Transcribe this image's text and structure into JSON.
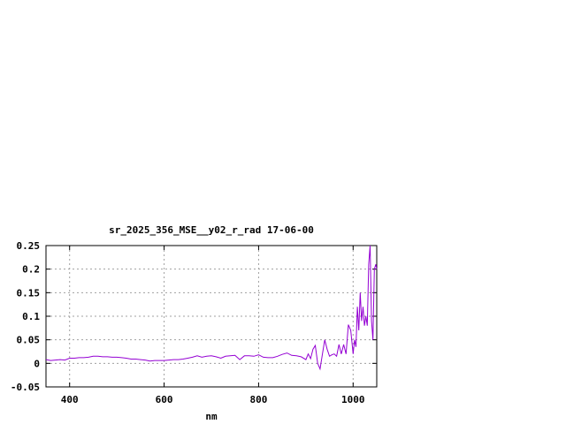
{
  "chart_data": {
    "type": "line",
    "title": "sr_2025_356_MSE__y02_r_rad 17-06-00",
    "xlabel": "nm",
    "ylabel": "",
    "xlim": [
      350,
      1050
    ],
    "ylim": [
      -0.05,
      0.25
    ],
    "xticks": [
      400,
      600,
      800,
      1000
    ],
    "yticks": [
      -0.05,
      0,
      0.05,
      0.1,
      0.15,
      0.2,
      0.25
    ],
    "ytick_labels": [
      "-0.05",
      "0",
      "0.05",
      "0.1",
      "0.15",
      "0.2",
      "0.25"
    ],
    "grid": true,
    "series_color": "#9400d3",
    "series": [
      {
        "x": [
          350,
          360,
          370,
          380,
          390,
          400,
          410,
          420,
          430,
          440,
          450,
          460,
          470,
          480,
          490,
          500,
          510,
          520,
          530,
          540,
          550,
          560,
          570,
          580,
          590,
          600,
          610,
          620,
          630,
          640,
          650,
          660,
          670,
          680,
          690,
          700,
          710,
          720,
          730,
          740,
          750,
          760,
          770,
          780,
          790,
          800,
          810,
          820,
          830,
          840,
          850,
          860,
          870,
          880,
          890,
          900,
          905,
          910,
          915,
          920,
          925,
          930,
          935,
          940,
          945,
          950,
          955,
          960,
          965,
          970,
          975,
          980,
          985,
          990,
          995,
          1000,
          1003,
          1006,
          1009,
          1012,
          1015,
          1018,
          1021,
          1024,
          1027,
          1030,
          1033,
          1036,
          1039,
          1042,
          1045,
          1048,
          1050
        ],
        "y": [
          0.008,
          0.006,
          0.007,
          0.008,
          0.007,
          0.011,
          0.011,
          0.012,
          0.012,
          0.013,
          0.015,
          0.015,
          0.014,
          0.014,
          0.013,
          0.013,
          0.012,
          0.011,
          0.009,
          0.009,
          0.008,
          0.007,
          0.005,
          0.006,
          0.006,
          0.006,
          0.007,
          0.008,
          0.008,
          0.009,
          0.011,
          0.013,
          0.016,
          0.013,
          0.015,
          0.016,
          0.014,
          0.011,
          0.015,
          0.016,
          0.017,
          0.008,
          0.016,
          0.016,
          0.015,
          0.018,
          0.013,
          0.012,
          0.012,
          0.015,
          0.019,
          0.022,
          0.017,
          0.016,
          0.014,
          0.008,
          0.02,
          0.01,
          0.03,
          0.038,
          0.0,
          -0.012,
          0.02,
          0.05,
          0.03,
          0.015,
          0.018,
          0.02,
          0.015,
          0.04,
          0.02,
          0.04,
          0.02,
          0.082,
          0.07,
          0.02,
          0.05,
          0.035,
          0.12,
          0.07,
          0.15,
          0.09,
          0.12,
          0.08,
          0.1,
          0.08,
          0.21,
          0.25,
          0.09,
          0.05,
          0.2,
          0.21,
          0.2
        ]
      }
    ]
  }
}
